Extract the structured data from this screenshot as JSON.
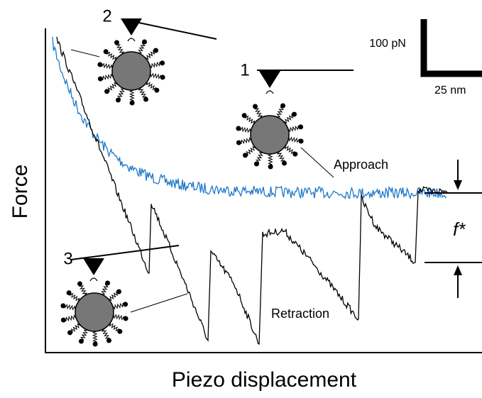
{
  "axes": {
    "y_label": "Force",
    "x_label": "Piezo displacement"
  },
  "scale_bar": {
    "force": "100 pN",
    "distance": "25 nm"
  },
  "curves": {
    "approach": "Approach",
    "retraction": "Retraction"
  },
  "states": [
    "1",
    "2",
    "3"
  ],
  "rupture_force": "f*"
}
